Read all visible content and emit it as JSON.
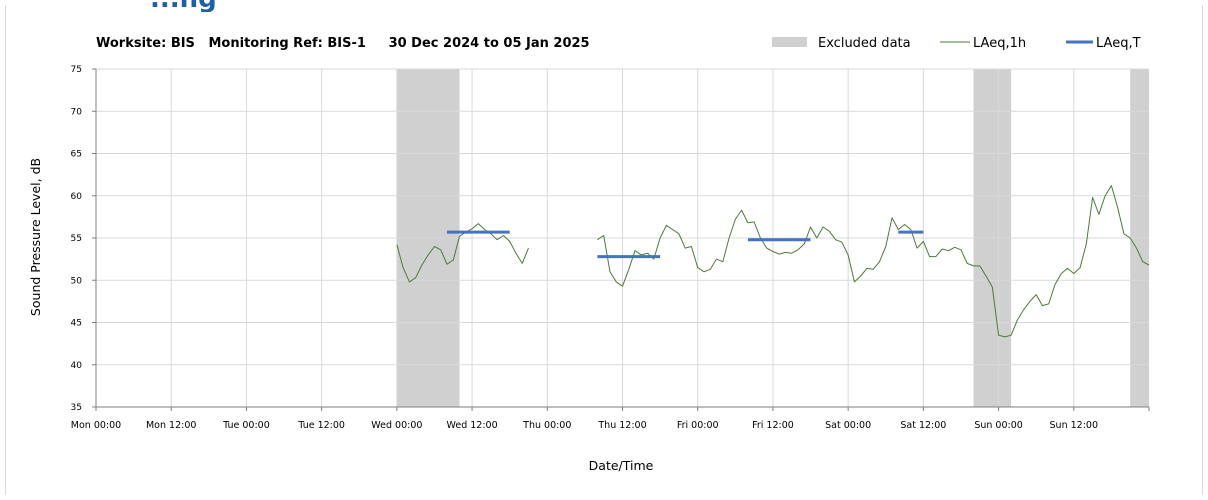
{
  "page_heading_partial": "...ng",
  "chart_data": {
    "type": "line",
    "title": "Worksite: BIS   Monitoring Ref: BIS-1     30 Dec 2024 to 05 Jan 2025",
    "xlabel": "Date/Time",
    "ylabel": "Sound Pressure Level, dB",
    "ylim": [
      35,
      75
    ],
    "yticks": [
      35,
      40,
      45,
      50,
      55,
      60,
      65,
      70,
      75
    ],
    "xlim_hours": [
      0,
      168
    ],
    "xticks": [
      {
        "h": 0,
        "label": "Mon 00:00"
      },
      {
        "h": 12,
        "label": "Mon 12:00"
      },
      {
        "h": 24,
        "label": "Tue 00:00"
      },
      {
        "h": 36,
        "label": "Tue 12:00"
      },
      {
        "h": 48,
        "label": "Wed 00:00"
      },
      {
        "h": 60,
        "label": "Wed 12:00"
      },
      {
        "h": 72,
        "label": "Thu 00:00"
      },
      {
        "h": 84,
        "label": "Thu 12:00"
      },
      {
        "h": 96,
        "label": "Fri 00:00"
      },
      {
        "h": 108,
        "label": "Fri 12:00"
      },
      {
        "h": 120,
        "label": "Sat 00:00"
      },
      {
        "h": 132,
        "label": "Sat 12:00"
      },
      {
        "h": 144,
        "label": "Sun 00:00"
      },
      {
        "h": 156,
        "label": "Sun 12:00"
      }
    ],
    "grid": "vertical and horizontal",
    "legend_position": "top-right",
    "legend": [
      {
        "label": "Excluded data",
        "kind": "band",
        "color": "#d0d0d0"
      },
      {
        "label": "LAeq,1h",
        "kind": "line",
        "color": "#4e7a3a"
      },
      {
        "label": "LAeq,T",
        "kind": "line",
        "color": "#4472c4"
      }
    ],
    "excluded_ranges": [
      [
        48,
        58
      ],
      [
        140,
        146
      ],
      [
        165,
        168
      ]
    ],
    "series": [
      {
        "name": "LAeq,1h",
        "color": "#4e7a3a",
        "segments": [
          {
            "x": [
              48,
              49,
              50,
              51,
              52,
              53,
              54,
              55,
              56,
              57,
              58,
              59,
              60,
              61,
              62,
              63,
              64,
              65,
              66,
              67,
              68,
              69
            ],
            "y": [
              54.2,
              51.5,
              49.8,
              50.3,
              51.8,
              53.0,
              54.0,
              53.6,
              51.9,
              52.4,
              55.2,
              55.7,
              56.1,
              56.7,
              56.0,
              55.5,
              54.8,
              55.3,
              54.6,
              53.2,
              52.0,
              53.8
            ]
          },
          {
            "x": [
              80,
              81,
              82,
              83,
              84,
              85,
              86,
              87,
              88,
              89,
              90,
              91,
              92,
              93,
              94,
              95,
              96,
              97,
              98,
              99,
              100,
              101,
              102,
              103,
              104,
              105,
              106,
              107,
              108,
              109,
              110,
              111,
              112,
              113,
              114,
              115,
              116,
              117,
              118,
              119,
              120,
              121,
              122,
              123,
              124,
              125,
              126,
              127,
              128,
              129,
              130,
              131,
              132,
              133,
              134,
              135,
              136,
              137,
              138,
              139,
              140,
              141,
              142,
              143,
              144,
              145,
              146,
              147,
              148,
              149,
              150,
              151,
              152,
              153,
              154,
              155,
              156,
              157,
              158,
              159,
              160,
              161,
              162,
              163,
              164,
              165,
              166,
              167,
              168
            ],
            "y": [
              54.8,
              55.3,
              51.0,
              49.8,
              49.3,
              51.3,
              53.5,
              53.0,
              53.2,
              52.5,
              55.0,
              56.5,
              56.0,
              55.5,
              53.8,
              54.0,
              51.5,
              51.0,
              51.3,
              52.5,
              52.2,
              55.0,
              57.2,
              58.3,
              56.8,
              56.9,
              55.0,
              53.8,
              53.4,
              53.1,
              53.3,
              53.2,
              53.6,
              54.3,
              56.3,
              55.0,
              56.3,
              55.8,
              54.8,
              54.5,
              53.0,
              49.8,
              50.5,
              51.4,
              51.3,
              52.2,
              54.0,
              57.4,
              56.0,
              56.6,
              56.0,
              53.8,
              54.6,
              52.8,
              52.8,
              53.7,
              53.5,
              53.9,
              53.6,
              52.0,
              51.7,
              51.7,
              50.5,
              49.2,
              43.5,
              43.3,
              43.5,
              45.3,
              46.5,
              47.5,
              48.3,
              47.0,
              47.2,
              49.5,
              50.8,
              51.4,
              50.8,
              51.5,
              54.3,
              59.8,
              57.8,
              60.0,
              61.2,
              58.6,
              55.5,
              55.0,
              53.8,
              52.2,
              51.8
            ]
          }
        ]
      },
      {
        "name": "LAeq,T",
        "color": "#4472c4",
        "segments": [
          {
            "x": [
              56,
              66
            ],
            "y": [
              55.7,
              55.7
            ]
          },
          {
            "x": [
              80,
              90
            ],
            "y": [
              52.8,
              52.8
            ]
          },
          {
            "x": [
              104,
              114
            ],
            "y": [
              54.8,
              54.8
            ]
          },
          {
            "x": [
              128,
              132
            ],
            "y": [
              55.7,
              55.7
            ]
          }
        ]
      }
    ]
  }
}
